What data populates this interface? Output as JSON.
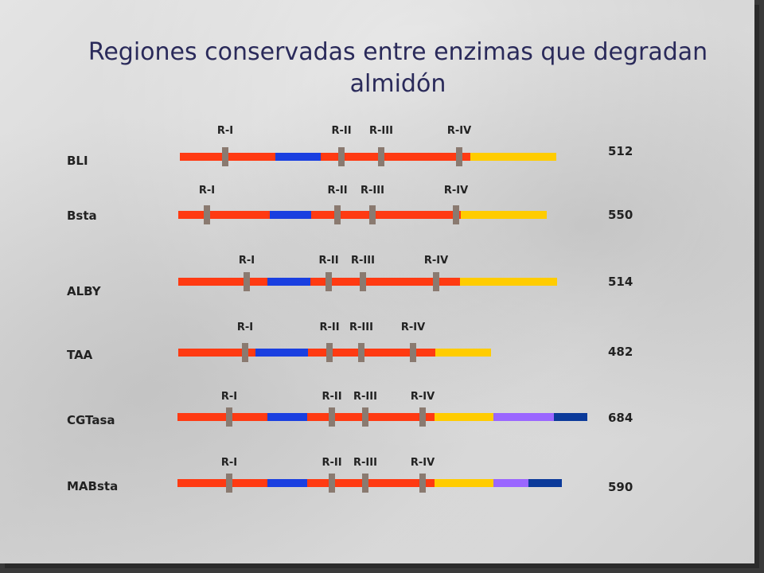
{
  "title": "Regiones conservadas entre enzimas que degradan almidón",
  "colors": {
    "red": "#ff3a12",
    "blue": "#1a3fe0",
    "yellow": "#ffcc00",
    "purple": "#9a66ff",
    "navy": "#0b3a9a",
    "marker": "#8a7a70"
  },
  "enzymes": [
    {
      "name": "BLI",
      "length": "512",
      "segments": [
        [
          "red",
          120
        ],
        [
          "blue",
          57
        ],
        [
          "red",
          188
        ],
        [
          "yellow",
          108
        ]
      ],
      "markers": [
        {
          "label": "R-I",
          "pos": 57
        },
        {
          "label": "R-II",
          "pos": 203
        },
        {
          "label": "R-III",
          "pos": 253
        },
        {
          "label": "R-IV",
          "pos": 351
        }
      ]
    },
    {
      "name": "Bsta",
      "length": "550",
      "segments": [
        [
          "red",
          115
        ],
        [
          "blue",
          52
        ],
        [
          "red",
          188
        ],
        [
          "yellow",
          108
        ]
      ],
      "markers": [
        {
          "label": "R-I",
          "pos": 36
        },
        {
          "label": "R-II",
          "pos": 200
        },
        {
          "label": "R-III",
          "pos": 244
        },
        {
          "label": "R-IV",
          "pos": 349
        }
      ]
    },
    {
      "name": "ALBY",
      "length": "514",
      "segments": [
        [
          "red",
          112
        ],
        [
          "blue",
          54
        ],
        [
          "red",
          188
        ],
        [
          "yellow",
          122
        ]
      ],
      "markers": [
        {
          "label": "R-I",
          "pos": 86
        },
        {
          "label": "R-II",
          "pos": 189
        },
        {
          "label": "R-III",
          "pos": 232
        },
        {
          "label": "R-IV",
          "pos": 324
        }
      ]
    },
    {
      "name": "TAA",
      "length": "482",
      "segments": [
        [
          "red",
          97
        ],
        [
          "blue",
          66
        ],
        [
          "red",
          160
        ],
        [
          "yellow",
          70
        ]
      ],
      "markers": [
        {
          "label": "R-I",
          "pos": 84
        },
        {
          "label": "R-II",
          "pos": 190
        },
        {
          "label": "R-III",
          "pos": 230
        },
        {
          "label": "R-IV",
          "pos": 295
        }
      ]
    },
    {
      "name": "CGTasa",
      "length": "684",
      "segments": [
        [
          "red",
          113
        ],
        [
          "blue",
          50
        ],
        [
          "red",
          160
        ],
        [
          "yellow",
          74
        ],
        [
          "purple",
          76
        ],
        [
          "navy",
          42
        ]
      ],
      "markers": [
        {
          "label": "R-I",
          "pos": 65
        },
        {
          "label": "R-II",
          "pos": 194
        },
        {
          "label": "R-III",
          "pos": 236
        },
        {
          "label": "R-IV",
          "pos": 308
        }
      ]
    },
    {
      "name": "MABsta",
      "length": "590",
      "segments": [
        [
          "red",
          113
        ],
        [
          "blue",
          50
        ],
        [
          "red",
          160
        ],
        [
          "yellow",
          74
        ],
        [
          "purple",
          44
        ],
        [
          "navy",
          42
        ]
      ],
      "markers": [
        {
          "label": "R-I",
          "pos": 65
        },
        {
          "label": "R-II",
          "pos": 194
        },
        {
          "label": "R-III",
          "pos": 236
        },
        {
          "label": "R-IV",
          "pos": 308
        }
      ]
    }
  ]
}
